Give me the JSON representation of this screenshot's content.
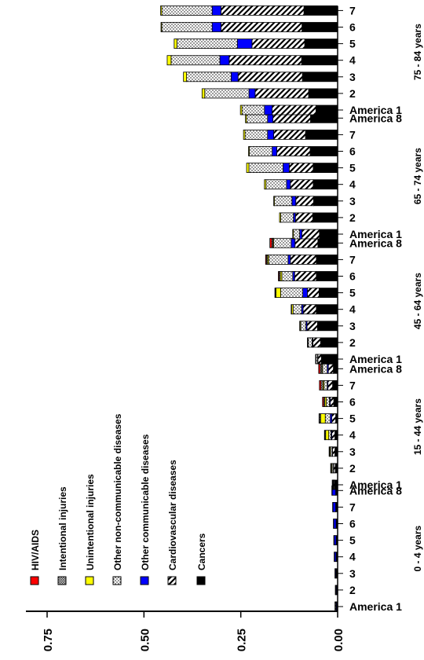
{
  "chart_data": {
    "type": "bar",
    "orientation": "horizontal-stacked-rotated",
    "xlim": [
      0,
      0.75
    ],
    "x_ticks": [
      {
        "value": 0.75,
        "label": "0.75"
      },
      {
        "value": 0.5,
        "label": "0.50"
      },
      {
        "value": 0.25,
        "label": "0.25"
      },
      {
        "value": 0.0,
        "label": "0.00"
      }
    ],
    "legend": [
      {
        "name": "HIV/AIDS",
        "color": "#ff0000",
        "pattern": "solid-red"
      },
      {
        "name": "Intentional injuries",
        "color": "#888888",
        "pattern": "crosshatch"
      },
      {
        "name": "Unintentional injuries",
        "color": "#ffff00",
        "pattern": "solid-yellow"
      },
      {
        "name": "Other non-communicable diseases",
        "color": "#ffffff",
        "pattern": "dots"
      },
      {
        "name": "Other communicable diseases",
        "color": "#0000ff",
        "pattern": "solid-blue"
      },
      {
        "name": "Cardiovascular diseases",
        "color": "#ffffff",
        "pattern": "diagonal"
      },
      {
        "name": "Cancers",
        "color": "#000000",
        "pattern": "solid-black"
      }
    ],
    "groups": [
      {
        "name": "0 - 4 years",
        "bars": [
          {
            "label": "America  1",
            "values": [
              0,
              0,
              0,
              0.002,
              0.002,
              0,
              0.003
            ]
          },
          {
            "label": "2",
            "values": [
              0,
              0,
              0,
              0.001,
              0.002,
              0,
              0.003
            ]
          },
          {
            "label": "3",
            "values": [
              0,
              0,
              0,
              0.001,
              0.002,
              0,
              0.004
            ]
          },
          {
            "label": "4",
            "values": [
              0,
              0,
              0,
              0.001,
              0.004,
              0,
              0.004
            ]
          },
          {
            "label": "5",
            "values": [
              0,
              0,
              0,
              0.001,
              0.005,
              0,
              0.004
            ]
          },
          {
            "label": "6",
            "values": [
              0,
              0,
              0,
              0.001,
              0.006,
              0,
              0.004
            ]
          },
          {
            "label": "7",
            "values": [
              0,
              0,
              0,
              0.001,
              0.007,
              0,
              0.005
            ]
          },
          {
            "label": "America  8",
            "values": [
              0,
              0,
              0,
              0.001,
              0.009,
              0,
              0.005
            ]
          }
        ]
      },
      {
        "name": "15 - 44 years",
        "bars": [
          {
            "label": "America  1",
            "values": [
              0,
              0.001,
              0.001,
              0.001,
              0.001,
              0.002,
              0.008
            ]
          },
          {
            "label": "2",
            "values": [
              0.001,
              0.001,
              0.002,
              0.003,
              0.001,
              0.004,
              0.006
            ]
          },
          {
            "label": "3",
            "values": [
              0.001,
              0.001,
              0.002,
              0.004,
              0.001,
              0.006,
              0.007
            ]
          },
          {
            "label": "4",
            "values": [
              0.001,
              0.002,
              0.008,
              0.006,
              0.002,
              0.008,
              0.007
            ]
          },
          {
            "label": "5",
            "values": [
              0.001,
              0.003,
              0.012,
              0.013,
              0.004,
              0.01,
              0.005
            ]
          },
          {
            "label": "6",
            "values": [
              0.003,
              0.003,
              0.004,
              0.008,
              0.002,
              0.009,
              0.01
            ]
          },
          {
            "label": "7",
            "values": [
              0.004,
              0.005,
              0.003,
              0.008,
              0.002,
              0.012,
              0.013
            ]
          },
          {
            "label": "America  8",
            "values": [
              0.004,
              0.004,
              0.002,
              0.012,
              0.003,
              0.013,
              0.011
            ]
          }
        ]
      },
      {
        "name": "45 - 64 years",
        "bars": [
          {
            "label": "America  1",
            "values": [
              0,
              0,
              0.001,
              0.004,
              0.001,
              0.009,
              0.042
            ]
          },
          {
            "label": "2",
            "values": [
              0,
              0.001,
              0.001,
              0.01,
              0.002,
              0.02,
              0.044
            ]
          },
          {
            "label": "3",
            "values": [
              0,
              0.001,
              0.002,
              0.013,
              0.003,
              0.027,
              0.052
            ]
          },
          {
            "label": "4",
            "values": [
              0,
              0.001,
              0.004,
              0.022,
              0.004,
              0.034,
              0.055
            ]
          },
          {
            "label": "5",
            "values": [
              0.001,
              0.002,
              0.012,
              0.057,
              0.012,
              0.03,
              0.048
            ]
          },
          {
            "label": "6",
            "values": [
              0.002,
              0.003,
              0.004,
              0.028,
              0.005,
              0.056,
              0.055
            ]
          },
          {
            "label": "7",
            "values": [
              0.002,
              0.003,
              0.003,
              0.05,
              0.006,
              0.067,
              0.055
            ]
          },
          {
            "label": "America  8",
            "values": [
              0.005,
              0.003,
              0.002,
              0.045,
              0.01,
              0.059,
              0.051
            ]
          }
        ]
      },
      {
        "name": "65 - 74 years",
        "bars": [
          {
            "label": "America  1",
            "values": [
              0,
              0,
              0.002,
              0.016,
              0.006,
              0.045,
              0.047
            ]
          },
          {
            "label": "2",
            "values": [
              0,
              0,
              0.003,
              0.033,
              0.005,
              0.045,
              0.064
            ]
          },
          {
            "label": "3",
            "values": [
              0,
              0,
              0.002,
              0.045,
              0.01,
              0.046,
              0.062
            ]
          },
          {
            "label": "4",
            "values": [
              0,
              0,
              0.004,
              0.053,
              0.01,
              0.059,
              0.063
            ]
          },
          {
            "label": "5",
            "values": [
              0,
              0,
              0.006,
              0.088,
              0.016,
              0.062,
              0.063
            ]
          },
          {
            "label": "6",
            "values": [
              0,
              0,
              0.002,
              0.059,
              0.012,
              0.086,
              0.071
            ]
          },
          {
            "label": "7",
            "values": [
              0,
              0,
              0.004,
              0.058,
              0.016,
              0.082,
              0.083
            ]
          },
          {
            "label": "America  8",
            "values": [
              0,
              0,
              0.003,
              0.054,
              0.014,
              0.097,
              0.07
            ]
          }
        ]
      },
      {
        "name": "75 - 84 years",
        "bars": [
          {
            "label": "America  1",
            "values": [
              0,
              0,
              0.004,
              0.058,
              0.02,
              0.113,
              0.056
            ]
          },
          {
            "label": "2",
            "values": [
              0,
              0,
              0.007,
              0.114,
              0.016,
              0.138,
              0.075
            ]
          },
          {
            "label": "3",
            "values": [
              0,
              0,
              0.008,
              0.115,
              0.018,
              0.166,
              0.091
            ]
          },
          {
            "label": "4",
            "values": [
              0,
              0,
              0.01,
              0.126,
              0.024,
              0.187,
              0.093
            ]
          },
          {
            "label": "5",
            "values": [
              0,
              0,
              0.007,
              0.156,
              0.038,
              0.136,
              0.085
            ]
          },
          {
            "label": "6",
            "values": [
              0,
              0,
              0.002,
              0.13,
              0.023,
              0.209,
              0.092
            ]
          },
          {
            "label": "7",
            "values": [
              0,
              0,
              0.003,
              0.13,
              0.023,
              0.214,
              0.087
            ]
          },
          {
            "label": "America  8",
            "values": [
              0,
              0,
              0.003,
              0.128,
              0.026,
              0.195,
              0.105
            ]
          }
        ]
      }
    ]
  }
}
